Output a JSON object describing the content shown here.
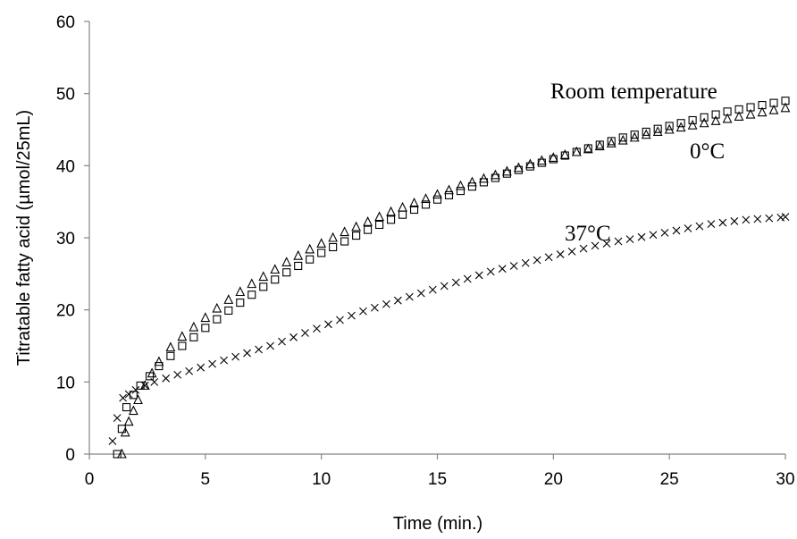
{
  "chart_data": {
    "type": "scatter",
    "title": "",
    "xlabel": "Time (min.)",
    "ylabel": "Titratable fatty acid (µmol/25mL)",
    "xlim": [
      0,
      30
    ],
    "ylim": [
      0,
      60
    ],
    "x_ticks": [
      "0",
      "5",
      "10",
      "15",
      "20",
      "25",
      "30"
    ],
    "y_ticks": [
      "0",
      "10",
      "20",
      "30",
      "40",
      "50",
      "60"
    ],
    "grid": false,
    "legend": "none",
    "annotations": [
      {
        "text": "Room temperature",
        "series": "room"
      },
      {
        "text": "0°C",
        "series": "zero"
      },
      {
        "text": "37°C",
        "series": "thirtyseven"
      }
    ],
    "series": [
      {
        "id": "room",
        "marker": "square",
        "x": [
          1.2,
          1.4,
          1.6,
          1.9,
          2.2,
          2.6,
          3,
          3.5,
          4,
          4.5,
          5,
          5.5,
          6,
          6.5,
          7,
          7.5,
          8,
          8.5,
          9,
          9.5,
          10,
          10.5,
          11,
          11.5,
          12,
          12.5,
          13,
          13.5,
          14,
          14.5,
          15,
          15.5,
          16,
          16.5,
          17,
          17.5,
          18,
          18.5,
          19,
          19.5,
          20,
          20.5,
          21,
          21.5,
          22,
          22.5,
          23,
          23.5,
          24,
          24.5,
          25,
          25.5,
          26,
          26.5,
          27,
          27.5,
          28,
          28.5,
          29,
          29.5,
          30
        ],
        "y": [
          0,
          3.5,
          6.5,
          8.2,
          9.5,
          10.8,
          12.2,
          13.6,
          15,
          16.2,
          17.5,
          18.7,
          19.9,
          21,
          22.1,
          23.2,
          24.2,
          25.2,
          26.1,
          27,
          27.9,
          28.7,
          29.5,
          30.3,
          31.1,
          31.8,
          32.5,
          33.2,
          33.9,
          34.6,
          35.3,
          35.9,
          36.5,
          37.1,
          37.7,
          38.3,
          38.9,
          39.4,
          39.9,
          40.4,
          40.9,
          41.4,
          41.9,
          42.4,
          42.9,
          43.4,
          43.9,
          44.3,
          44.7,
          45.1,
          45.5,
          45.9,
          46.3,
          46.7,
          47.1,
          47.5,
          47.8,
          48.1,
          48.4,
          48.7,
          49
        ]
      },
      {
        "id": "zero",
        "marker": "triangle",
        "x": [
          1.4,
          1.55,
          1.7,
          1.9,
          2.1,
          2.4,
          2.7,
          3,
          3.5,
          4,
          4.5,
          5,
          5.5,
          6,
          6.5,
          7,
          7.5,
          8,
          8.5,
          9,
          9.5,
          10,
          10.5,
          11,
          11.5,
          12,
          12.5,
          13,
          13.5,
          14,
          14.5,
          15,
          15.5,
          16,
          16.5,
          17,
          17.5,
          18,
          18.5,
          19,
          19.5,
          20,
          20.5,
          21,
          21.5,
          22,
          22.5,
          23,
          23.5,
          24,
          24.5,
          25,
          25.5,
          26,
          26.5,
          27,
          27.5,
          28,
          28.5,
          29,
          29.5,
          30
        ],
        "y": [
          0,
          3,
          4.5,
          6,
          7.5,
          9.5,
          11.2,
          12.8,
          14.8,
          16.3,
          17.6,
          18.9,
          20.2,
          21.4,
          22.5,
          23.6,
          24.6,
          25.6,
          26.6,
          27.5,
          28.4,
          29.2,
          30,
          30.8,
          31.5,
          32.2,
          32.9,
          33.6,
          34.2,
          34.8,
          35.4,
          36,
          36.6,
          37.2,
          37.7,
          38.2,
          38.7,
          39.2,
          39.7,
          40.2,
          40.7,
          41.1,
          41.5,
          41.9,
          42.3,
          42.7,
          43.1,
          43.5,
          43.9,
          44.3,
          44.7,
          45,
          45.3,
          45.6,
          45.9,
          46.2,
          46.5,
          46.8,
          47.1,
          47.4,
          47.7,
          48
        ]
      },
      {
        "id": "thirtyseven",
        "marker": "x",
        "x": [
          1,
          1.2,
          1.45,
          1.7,
          2,
          2.4,
          2.8,
          3.3,
          3.8,
          4.3,
          4.8,
          5.3,
          5.8,
          6.3,
          6.8,
          7.3,
          7.8,
          8.3,
          8.8,
          9.3,
          9.8,
          10.3,
          10.8,
          11.3,
          11.8,
          12.3,
          12.8,
          13.3,
          13.8,
          14.3,
          14.8,
          15.3,
          15.8,
          16.3,
          16.8,
          17.3,
          17.8,
          18.3,
          18.8,
          19.3,
          19.8,
          20.3,
          20.8,
          21.3,
          21.8,
          22.3,
          22.8,
          23.3,
          23.8,
          24.3,
          24.8,
          25.3,
          25.8,
          26.3,
          26.8,
          27.3,
          27.8,
          28.3,
          28.8,
          29.3,
          29.8,
          30
        ],
        "y": [
          1.8,
          5,
          7.8,
          8.3,
          8.9,
          9.5,
          10,
          10.5,
          11,
          11.5,
          12,
          12.5,
          13,
          13.5,
          14,
          14.5,
          15,
          15.6,
          16.2,
          16.8,
          17.4,
          18,
          18.6,
          19.2,
          19.8,
          20.3,
          20.8,
          21.3,
          21.8,
          22.3,
          22.8,
          23.3,
          23.8,
          24.3,
          24.8,
          25.3,
          25.7,
          26.1,
          26.5,
          26.9,
          27.3,
          27.7,
          28.1,
          28.5,
          28.9,
          29.2,
          29.5,
          29.8,
          30.1,
          30.4,
          30.7,
          31,
          31.3,
          31.6,
          31.9,
          32.1,
          32.3,
          32.5,
          32.6,
          32.7,
          32.8,
          32.9
        ]
      }
    ]
  }
}
